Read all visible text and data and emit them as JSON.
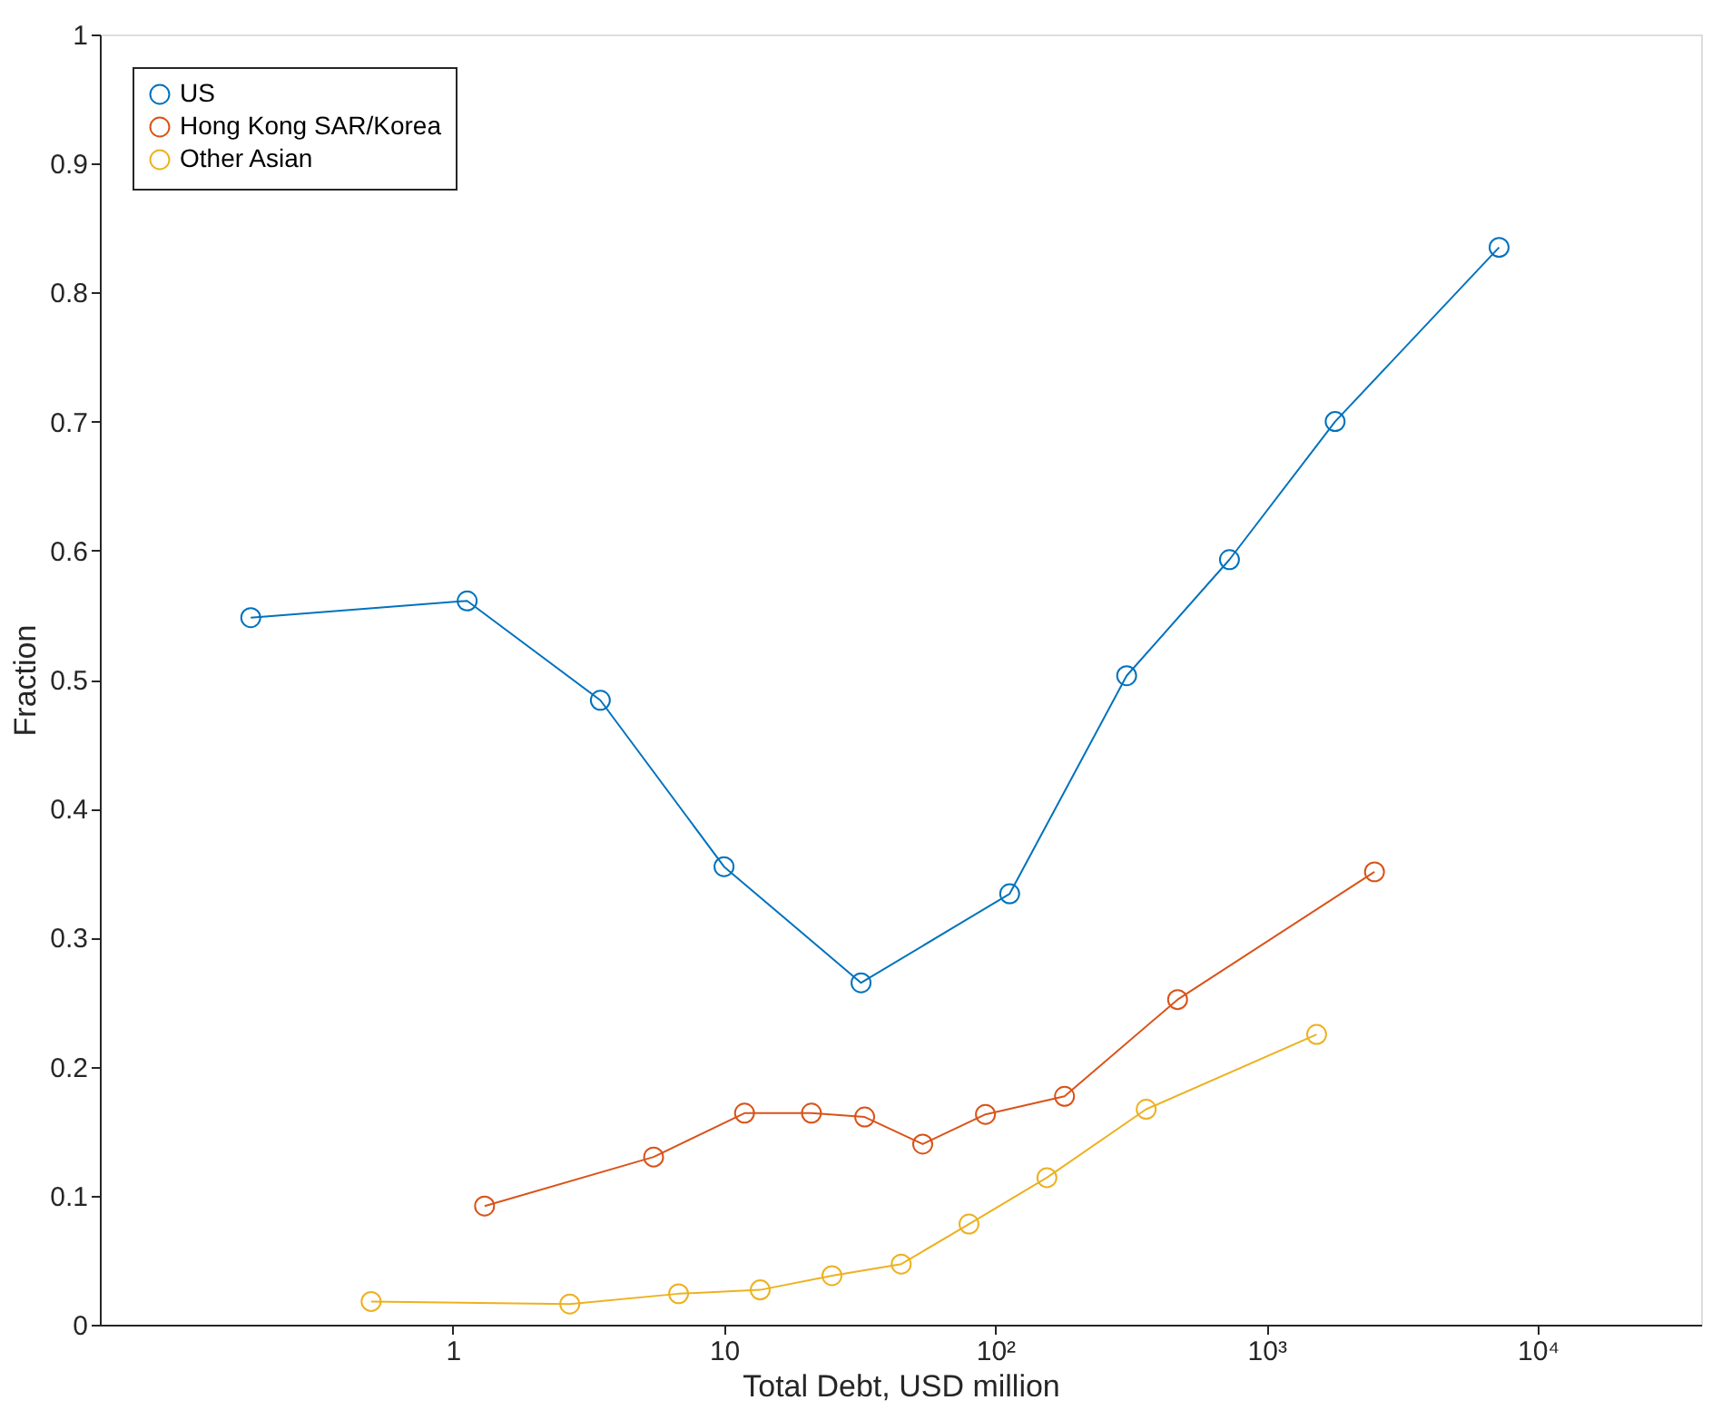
{
  "chart_data": {
    "type": "line",
    "xlabel": "Total Debt, USD million",
    "ylabel": "Fraction",
    "log": "x",
    "xlim": [
      0.05,
      40000
    ],
    "xticks": [
      1,
      10,
      {
        "value": 100,
        "label": "10²"
      },
      {
        "value": 1000,
        "label": "10³"
      },
      {
        "value": 10000,
        "label": "10⁴"
      }
    ],
    "ylim": [
      0,
      1
    ],
    "yticks": [
      0,
      0.1,
      0.2,
      0.3,
      0.4,
      0.5,
      0.6,
      0.7,
      0.8,
      0.9,
      1
    ],
    "grid": false,
    "legend": "top left",
    "marker": "circle",
    "line_style": "solid",
    "series": [
      {
        "name": "US",
        "color": "#0072bd",
        "x": [
          0.18,
          1.13,
          3.5,
          10,
          32,
          113,
          305,
          730,
          1790,
          7200
        ],
        "values": [
          0.548,
          0.561,
          0.484,
          0.355,
          0.265,
          0.334,
          0.503,
          0.593,
          0.7,
          0.835
        ]
      },
      {
        "name": "Hong Kong SAR/Korea",
        "color": "#d95319",
        "x": [
          1.31,
          5.5,
          11.9,
          21,
          33,
          54,
          92,
          180,
          470,
          2500
        ],
        "values": [
          0.092,
          0.13,
          0.164,
          0.164,
          0.161,
          0.14,
          0.163,
          0.177,
          0.252,
          0.351
        ]
      },
      {
        "name": "Other Asian",
        "color": "#edb120",
        "x": [
          0.5,
          2.7,
          6.8,
          13.6,
          25,
          45,
          80,
          155,
          360,
          1530
        ],
        "values": [
          0.018,
          0.016,
          0.024,
          0.027,
          0.038,
          0.047,
          0.078,
          0.114,
          0.167,
          0.225
        ]
      }
    ]
  }
}
